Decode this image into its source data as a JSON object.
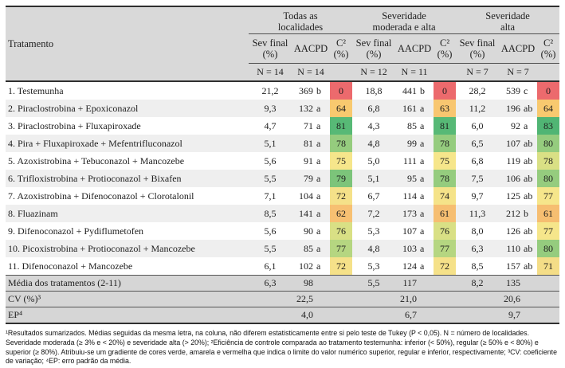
{
  "colors": {
    "header_bg": "#D9D9D9",
    "stripe_bg": "#EFEFEF",
    "summary_bg": "#D6D6D6",
    "border_dark": "#2F2F2F",
    "border_thin": "#4F4F4F",
    "scale_red": "#EC6A6D",
    "scale_yellow": "#F6E68B",
    "scale_green": "#57B976"
  },
  "table": {
    "treatment_header": "Tratamento",
    "groups": [
      {
        "label": "Todas as\nlocalidades"
      },
      {
        "label": "Severidade\nmoderada e alta"
      },
      {
        "label": "Severidade\nalta"
      }
    ],
    "subheaders": {
      "sev": "Sev final\n(%)",
      "aacpd": "AACPD",
      "c2": "C²\n(%)"
    },
    "n_values": [
      "N = 14",
      "N = 14",
      "",
      "N = 12",
      "N = 11",
      "",
      "N = 7",
      "N = 7",
      ""
    ],
    "rows": [
      {
        "name": "1. Testemunha",
        "groups": [
          {
            "sev": "21,2",
            "aacpd": "369",
            "letters": "b",
            "c2": "0",
            "c2_color": "#EC6A6D"
          },
          {
            "sev": "18,8",
            "aacpd": "441",
            "letters": "b",
            "c2": "0",
            "c2_color": "#EC6A6D"
          },
          {
            "sev": "28,2",
            "aacpd": "539",
            "letters": "c",
            "c2": "0",
            "c2_color": "#EC6A6D"
          }
        ]
      },
      {
        "name": "2. Piraclostrobina + Epoxiconazol",
        "groups": [
          {
            "sev": "9,3",
            "aacpd": "132",
            "letters": "a",
            "c2": "64",
            "c2_color": "#F8C96F"
          },
          {
            "sev": "6,8",
            "aacpd": "161",
            "letters": "a",
            "c2": "63",
            "c2_color": "#F8C670"
          },
          {
            "sev": "11,2",
            "aacpd": "196",
            "letters": "ab",
            "c2": "64",
            "c2_color": "#F8C96F"
          }
        ]
      },
      {
        "name": "3. Piraclostrobina + Fluxapiroxade",
        "groups": [
          {
            "sev": "4,7",
            "aacpd": "71",
            "letters": "a",
            "c2": "81",
            "c2_color": "#57B976"
          },
          {
            "sev": "4,3",
            "aacpd": "85",
            "letters": "a",
            "c2": "81",
            "c2_color": "#57B976"
          },
          {
            "sev": "6,0",
            "aacpd": "92",
            "letters": "a",
            "c2": "83",
            "c2_color": "#50B574"
          }
        ]
      },
      {
        "name": "4. Pira + Fluxapiroxade + Mefentrifluconazol",
        "groups": [
          {
            "sev": "5,1",
            "aacpd": "81",
            "letters": "a",
            "c2": "78",
            "c2_color": "#95CC7E"
          },
          {
            "sev": "4,8",
            "aacpd": "99",
            "letters": "a",
            "c2": "78",
            "c2_color": "#95CC7E"
          },
          {
            "sev": "6,5",
            "aacpd": "107",
            "letters": "ab",
            "c2": "80",
            "c2_color": "#95CC7E"
          }
        ]
      },
      {
        "name": "5. Azoxistrobina + Tebuconazol + Mancozebe",
        "groups": [
          {
            "sev": "5,6",
            "aacpd": "91",
            "letters": "a",
            "c2": "75",
            "c2_color": "#F6E68B"
          },
          {
            "sev": "5,0",
            "aacpd": "111",
            "letters": "a",
            "c2": "75",
            "c2_color": "#F6E68B"
          },
          {
            "sev": "6,8",
            "aacpd": "119",
            "letters": "ab",
            "c2": "78",
            "c2_color": "#D9E085"
          }
        ]
      },
      {
        "name": "6. Trifloxistrobina + Protioconazol + Bixafen",
        "groups": [
          {
            "sev": "5,5",
            "aacpd": "79",
            "letters": "a",
            "c2": "79",
            "c2_color": "#7CC47A"
          },
          {
            "sev": "5,1",
            "aacpd": "95",
            "letters": "a",
            "c2": "78",
            "c2_color": "#95CC7E"
          },
          {
            "sev": "7,5",
            "aacpd": "106",
            "letters": "ab",
            "c2": "80",
            "c2_color": "#95CC7E"
          }
        ]
      },
      {
        "name": "7. Azoxistrobina + Difenoconazol + Clorotalonil",
        "groups": [
          {
            "sev": "7,1",
            "aacpd": "104",
            "letters": "a",
            "c2": "72",
            "c2_color": "#F5E189"
          },
          {
            "sev": "6,7",
            "aacpd": "114",
            "letters": "a",
            "c2": "74",
            "c2_color": "#F5E389"
          },
          {
            "sev": "9,7",
            "aacpd": "125",
            "letters": "ab",
            "c2": "77",
            "c2_color": "#F6E68B"
          }
        ]
      },
      {
        "name": "8. Fluazinam",
        "groups": [
          {
            "sev": "8,5",
            "aacpd": "141",
            "letters": "a",
            "c2": "62",
            "c2_color": "#F7C072"
          },
          {
            "sev": "7,2",
            "aacpd": "173",
            "letters": "a",
            "c2": "61",
            "c2_color": "#F6BE71"
          },
          {
            "sev": "11,3",
            "aacpd": "212",
            "letters": "b",
            "c2": "61",
            "c2_color": "#F6BE71"
          }
        ]
      },
      {
        "name": "9. Difenoconazol + Pydiflumetofen",
        "groups": [
          {
            "sev": "5,6",
            "aacpd": "90",
            "letters": "a",
            "c2": "76",
            "c2_color": "#D9E085"
          },
          {
            "sev": "5,3",
            "aacpd": "107",
            "letters": "a",
            "c2": "76",
            "c2_color": "#D9E085"
          },
          {
            "sev": "8,0",
            "aacpd": "126",
            "letters": "ab",
            "c2": "77",
            "c2_color": "#F6E68B"
          }
        ]
      },
      {
        "name": "10. Picoxistrobina + Protioconazol + Mancozebe",
        "groups": [
          {
            "sev": "5,5",
            "aacpd": "85",
            "letters": "a",
            "c2": "77",
            "c2_color": "#B5D681"
          },
          {
            "sev": "4,8",
            "aacpd": "103",
            "letters": "a",
            "c2": "77",
            "c2_color": "#B5D681"
          },
          {
            "sev": "6,3",
            "aacpd": "110",
            "letters": "ab",
            "c2": "80",
            "c2_color": "#95CC7E"
          }
        ]
      },
      {
        "name": "11. Difenoconazol + Mancozebe",
        "groups": [
          {
            "sev": "6,1",
            "aacpd": "102",
            "letters": "a",
            "c2": "72",
            "c2_color": "#F5E189"
          },
          {
            "sev": "5,3",
            "aacpd": "124",
            "letters": "a",
            "c2": "72",
            "c2_color": "#F5E189"
          },
          {
            "sev": "8,5",
            "aacpd": "157",
            "letters": "ab",
            "c2": "71",
            "c2_color": "#F4DD87"
          }
        ]
      }
    ],
    "summary_rows": [
      {
        "label": "Média dos tratamentos (2-11)",
        "groups": [
          {
            "sev": "6,3",
            "aacpd": "98"
          },
          {
            "sev": "5,5",
            "aacpd": "117"
          },
          {
            "sev": "8,2",
            "aacpd": "135"
          }
        ]
      },
      {
        "label": "CV (%)³",
        "groups": [
          {
            "sev": "",
            "aacpd": "22,5"
          },
          {
            "sev": "",
            "aacpd": "21,0"
          },
          {
            "sev": "",
            "aacpd": "20,6"
          }
        ]
      },
      {
        "label": "EP⁴",
        "groups": [
          {
            "sev": "",
            "aacpd": "4,0"
          },
          {
            "sev": "",
            "aacpd": "6,7"
          },
          {
            "sev": "",
            "aacpd": "9,7"
          }
        ]
      }
    ]
  },
  "footnote": "¹Resultados sumarizados. Médias seguidas da mesma letra, na coluna, não diferem estatisticamente entre si pelo teste de Tukey (P < 0,05). N = número de localidades. Severidade moderada (≥ 3% e < 20%) e severidade alta (> 20%); ²Eficiência de controle comparada ao tratamento testemunha: inferior (< 50%), regular (≥ 50% e < 80%) e superior (≥ 80%). Atribuiu-se um gradiente de cores verde, amarela e vermelha que indica o limite do valor numérico superior, regular e inferior, respectivamente; ³CV: coeficiente de variação; ⁴EP: erro padrão da média."
}
